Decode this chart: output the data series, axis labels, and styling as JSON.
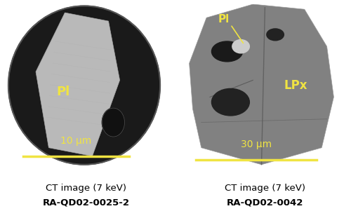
{
  "fig_width": 5.0,
  "fig_height": 3.01,
  "dpi": 100,
  "bg_color": "#ffffff",
  "left_caption_line1": "CT image (7 keV)",
  "left_caption_line2": "RA-QD02-0025-2",
  "right_caption_line1": "CT image (7 keV)",
  "right_caption_line2": "RA-QD02-0042",
  "left_scalebar_text": "10 μm",
  "right_scalebar_text": "30 μm",
  "label_Pl_left": "Pl",
  "label_Pl_right": "Pl",
  "label_LPx": "LPx",
  "yellow_color": "#f0e442",
  "caption_color": "#000000",
  "caption_fontsize": 9.5,
  "caption_bold_fontsize": 9.5
}
